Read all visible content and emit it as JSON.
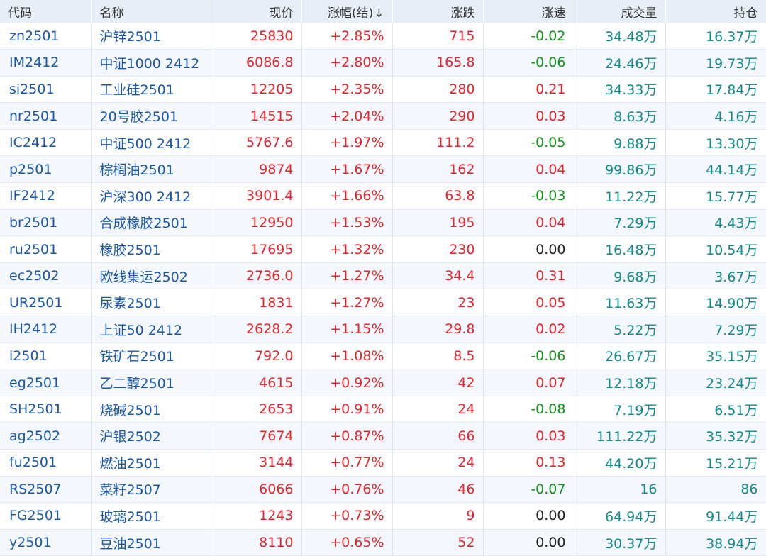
{
  "colors": {
    "header_bg": "#e8eef7",
    "link_blue": "#1a57a8",
    "up_red": "#e4242a",
    "down_green": "#129218",
    "volume_teal": "#138a8a"
  },
  "header": {
    "code": "代码",
    "name": "名称",
    "price": "现价",
    "change_pct": "涨幅(结)",
    "sort_icon": "↓",
    "change": "涨跌",
    "speed": "涨速",
    "volume": "成交量",
    "open_interest": "持仓"
  },
  "rows": [
    {
      "code": "zn2501",
      "name": "沪锌2501",
      "price": "25830",
      "change_pct": "+2.85%",
      "change": "715",
      "speed": "-0.02",
      "speed_dir": "down",
      "volume": "34.48万",
      "open_interest": "16.37万"
    },
    {
      "code": "IM2412",
      "name": "中证1000 2412",
      "price": "6086.8",
      "change_pct": "+2.80%",
      "change": "165.8",
      "speed": "-0.06",
      "speed_dir": "down",
      "volume": "24.46万",
      "open_interest": "19.73万"
    },
    {
      "code": "si2501",
      "name": "工业硅2501",
      "price": "12205",
      "change_pct": "+2.35%",
      "change": "280",
      "speed": "0.21",
      "speed_dir": "up",
      "volume": "34.33万",
      "open_interest": "17.84万"
    },
    {
      "code": "nr2501",
      "name": "20号胶2501",
      "price": "14515",
      "change_pct": "+2.04%",
      "change": "290",
      "speed": "0.03",
      "speed_dir": "up",
      "volume": "8.63万",
      "open_interest": "4.16万"
    },
    {
      "code": "IC2412",
      "name": "中证500 2412",
      "price": "5767.6",
      "change_pct": "+1.97%",
      "change": "111.2",
      "speed": "-0.05",
      "speed_dir": "down",
      "volume": "9.88万",
      "open_interest": "13.30万"
    },
    {
      "code": "p2501",
      "name": "棕榈油2501",
      "price": "9874",
      "change_pct": "+1.67%",
      "change": "162",
      "speed": "0.04",
      "speed_dir": "up",
      "volume": "99.86万",
      "open_interest": "44.14万"
    },
    {
      "code": "IF2412",
      "name": "沪深300 2412",
      "price": "3901.4",
      "change_pct": "+1.66%",
      "change": "63.8",
      "speed": "-0.03",
      "speed_dir": "down",
      "volume": "11.22万",
      "open_interest": "15.77万"
    },
    {
      "code": "br2501",
      "name": "合成橡胶2501",
      "price": "12950",
      "change_pct": "+1.53%",
      "change": "195",
      "speed": "0.04",
      "speed_dir": "up",
      "volume": "7.29万",
      "open_interest": "4.43万"
    },
    {
      "code": "ru2501",
      "name": "橡胶2501",
      "price": "17695",
      "change_pct": "+1.32%",
      "change": "230",
      "speed": "0.00",
      "speed_dir": "flat",
      "volume": "16.48万",
      "open_interest": "10.54万"
    },
    {
      "code": "ec2502",
      "name": "欧线集运2502",
      "price": "2736.0",
      "change_pct": "+1.27%",
      "change": "34.4",
      "speed": "0.31",
      "speed_dir": "up",
      "volume": "9.68万",
      "open_interest": "3.67万"
    },
    {
      "code": "UR2501",
      "name": "尿素2501",
      "price": "1831",
      "change_pct": "+1.27%",
      "change": "23",
      "speed": "0.05",
      "speed_dir": "up",
      "volume": "11.63万",
      "open_interest": "14.90万"
    },
    {
      "code": "IH2412",
      "name": "上证50 2412",
      "price": "2628.2",
      "change_pct": "+1.15%",
      "change": "29.8",
      "speed": "0.02",
      "speed_dir": "up",
      "volume": "5.22万",
      "open_interest": "7.29万"
    },
    {
      "code": "i2501",
      "name": "铁矿石2501",
      "price": "792.0",
      "change_pct": "+1.08%",
      "change": "8.5",
      "speed": "-0.06",
      "speed_dir": "down",
      "volume": "26.67万",
      "open_interest": "35.15万"
    },
    {
      "code": "eg2501",
      "name": "乙二醇2501",
      "price": "4615",
      "change_pct": "+0.92%",
      "change": "42",
      "speed": "0.07",
      "speed_dir": "up",
      "volume": "12.18万",
      "open_interest": "23.24万"
    },
    {
      "code": "SH2501",
      "name": "烧碱2501",
      "price": "2653",
      "change_pct": "+0.91%",
      "change": "24",
      "speed": "-0.08",
      "speed_dir": "down",
      "volume": "7.19万",
      "open_interest": "6.51万"
    },
    {
      "code": "ag2502",
      "name": "沪银2502",
      "price": "7674",
      "change_pct": "+0.87%",
      "change": "66",
      "speed": "0.03",
      "speed_dir": "up",
      "volume": "111.22万",
      "open_interest": "35.32万"
    },
    {
      "code": "fu2501",
      "name": "燃油2501",
      "price": "3144",
      "change_pct": "+0.77%",
      "change": "24",
      "speed": "0.13",
      "speed_dir": "up",
      "volume": "44.20万",
      "open_interest": "15.21万"
    },
    {
      "code": "RS2507",
      "name": "菜籽2507",
      "price": "6066",
      "change_pct": "+0.76%",
      "change": "46",
      "speed": "-0.07",
      "speed_dir": "down",
      "volume": "16",
      "open_interest": "86"
    },
    {
      "code": "FG2501",
      "name": "玻璃2501",
      "price": "1243",
      "change_pct": "+0.73%",
      "change": "9",
      "speed": "0.00",
      "speed_dir": "flat",
      "volume": "64.94万",
      "open_interest": "91.44万"
    },
    {
      "code": "y2501",
      "name": "豆油2501",
      "price": "8110",
      "change_pct": "+0.65%",
      "change": "52",
      "speed": "0.00",
      "speed_dir": "flat",
      "volume": "30.37万",
      "open_interest": "38.94万"
    }
  ]
}
